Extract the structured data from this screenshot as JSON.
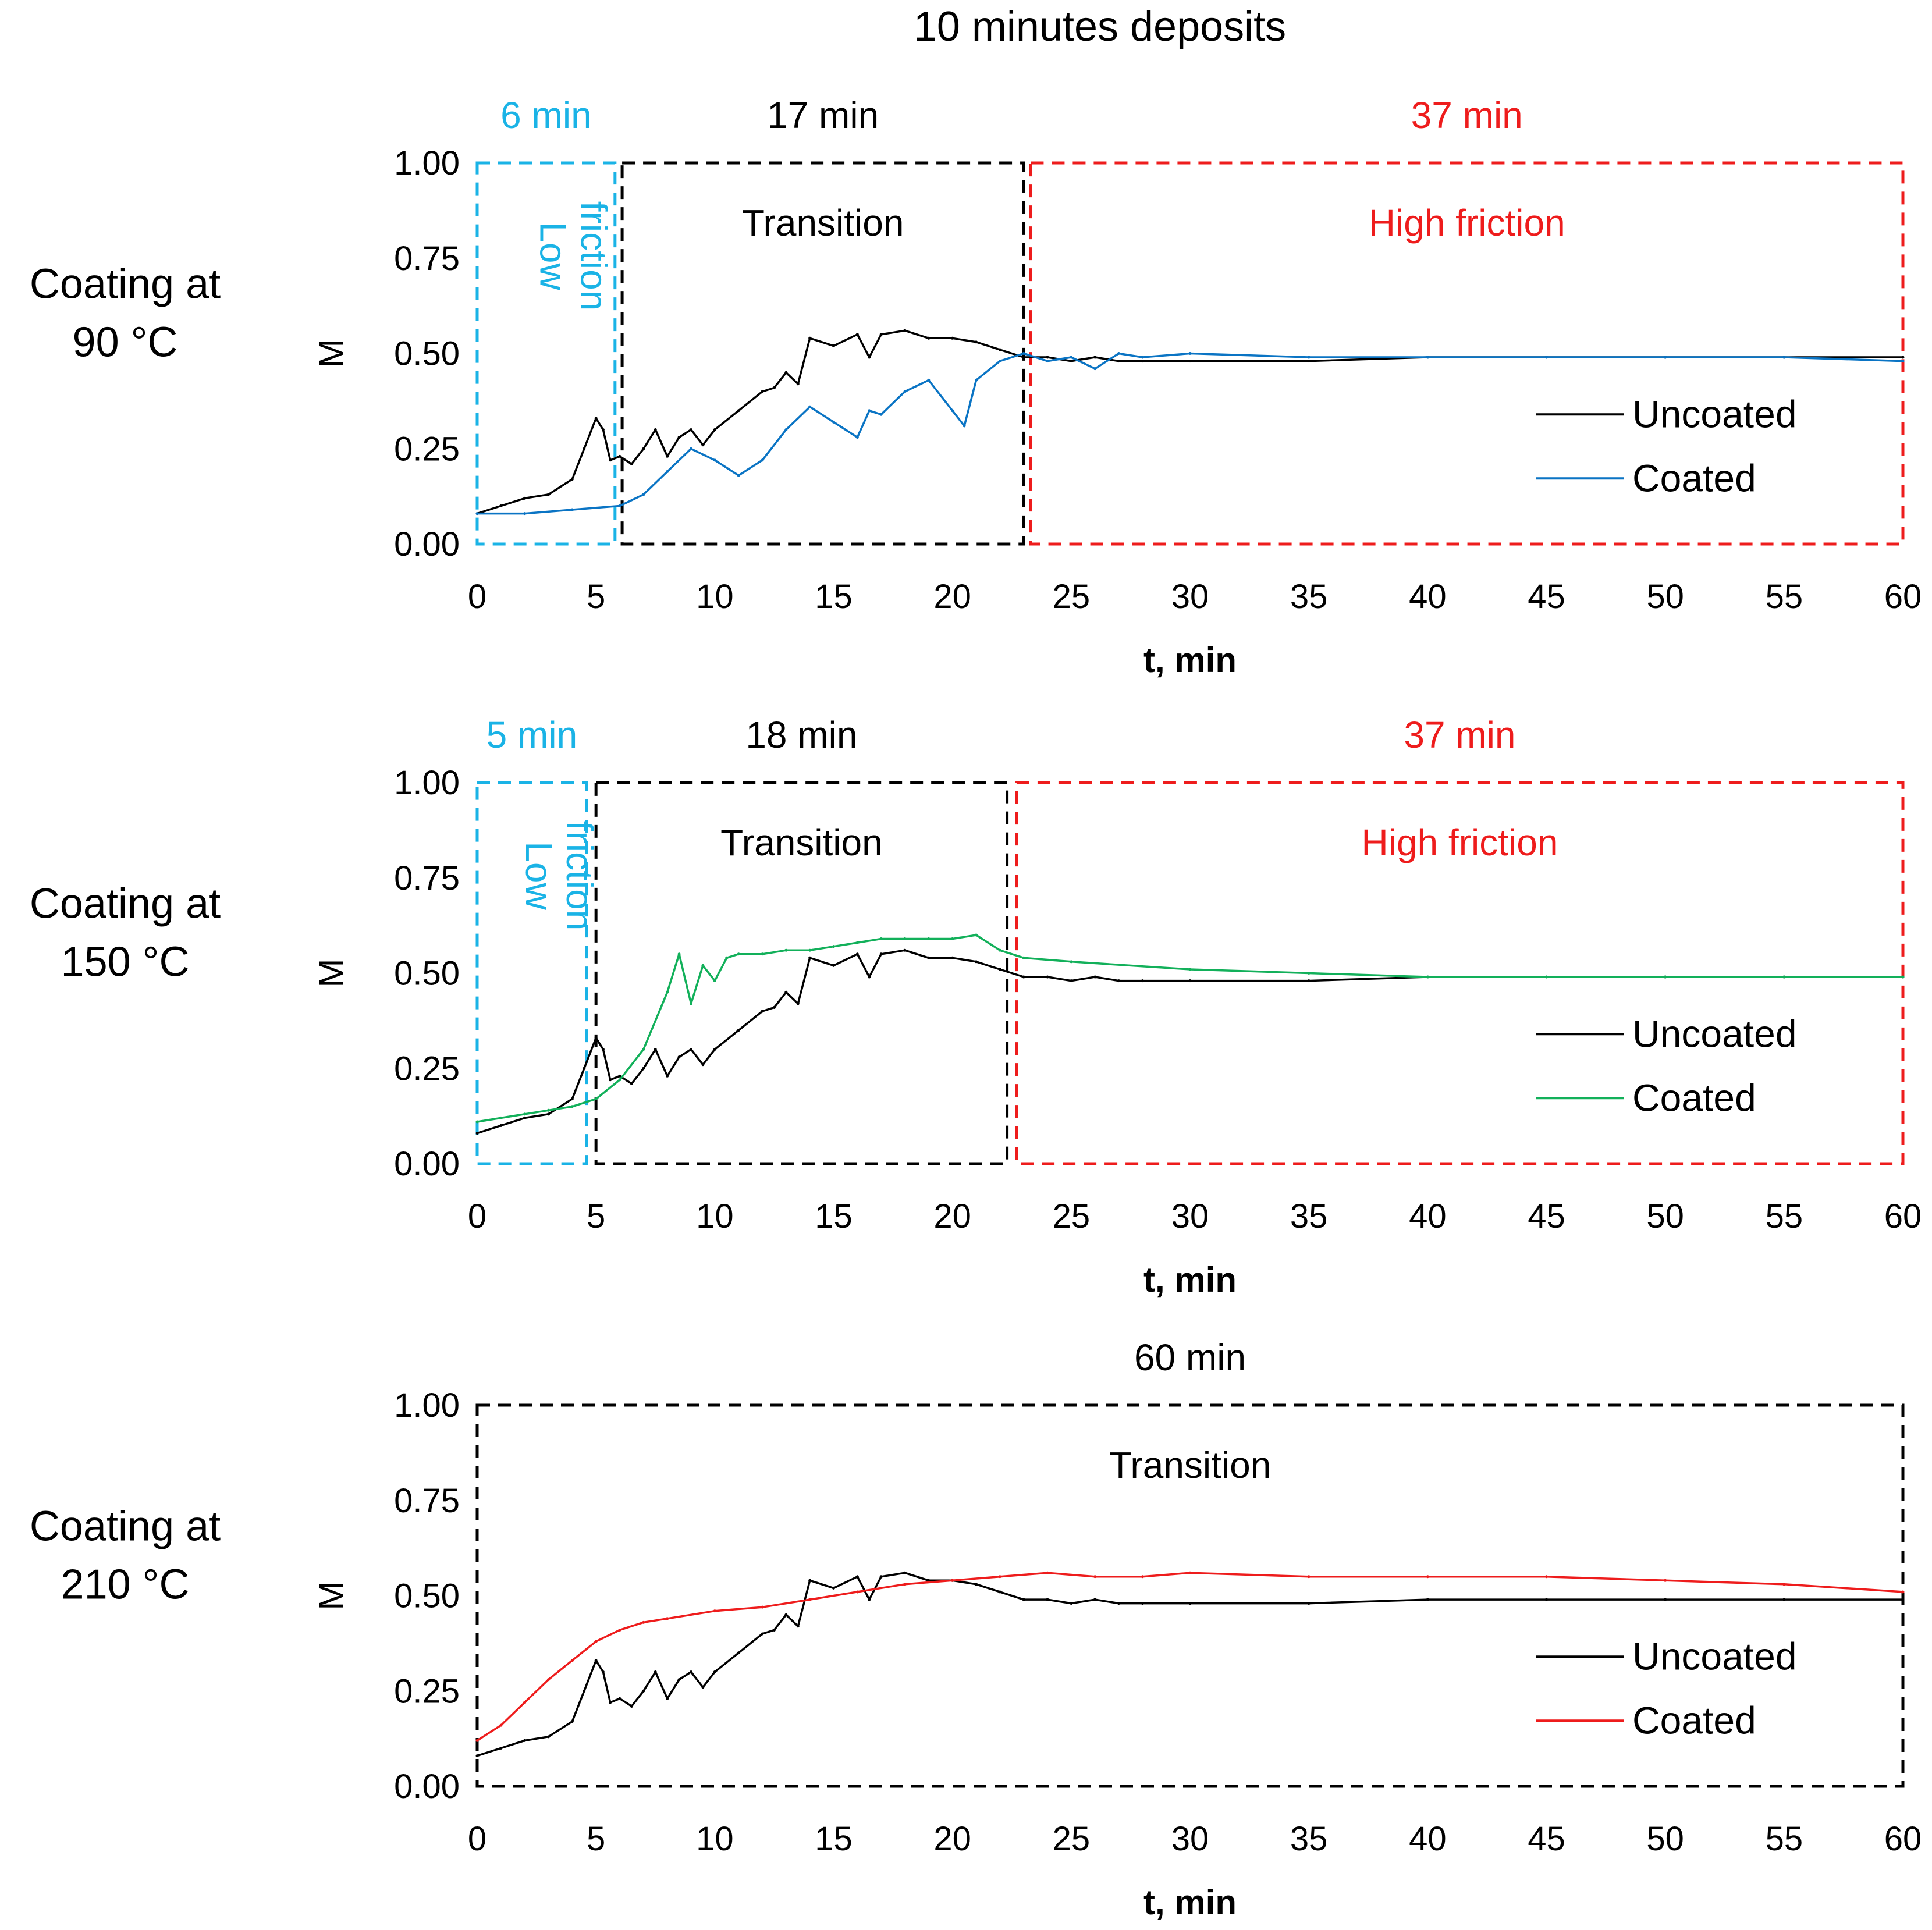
{
  "figure": {
    "title": "10 minutes deposits",
    "xlabel": "t, min",
    "ylabel": "M",
    "x_ticks": [
      "0",
      "5",
      "10",
      "15",
      "20",
      "25",
      "30",
      "35",
      "40",
      "45",
      "50",
      "55",
      "60"
    ],
    "y_ticks": [
      "0.00",
      "0.25",
      "0.50",
      "0.75",
      "1.00"
    ],
    "legend_uncoated": "Uncoated",
    "legend_coated": "Coated"
  },
  "colors": {
    "low": "#1ab3e6",
    "transition": "#000000",
    "high": "#ee1c1c",
    "uncoated": "#000000",
    "coated_90": "#0a74c4",
    "coated_150": "#12b05a",
    "coated_210": "#ee1c1c"
  },
  "panels": [
    {
      "label_line1": "Coating at",
      "label_line2": "90 °C",
      "zones": [
        {
          "name": "Low friction",
          "duration": "6 min",
          "x0": 0,
          "x1": 5.8,
          "kind": "low",
          "label_line1": "Low",
          "label_line2": "friction"
        },
        {
          "name": "Transition",
          "duration": "17 min",
          "x0": 6.1,
          "x1": 23.0,
          "kind": "transition",
          "label_line1": "Transition"
        },
        {
          "name": "High friction",
          "duration": "37 min",
          "x0": 23.3,
          "x1": 60,
          "kind": "high",
          "label_line1": "High friction"
        }
      ]
    },
    {
      "label_line1": "Coating at",
      "label_line2": "150 °C",
      "zones": [
        {
          "name": "Low friction",
          "duration": "5 min",
          "x0": 0,
          "x1": 4.6,
          "kind": "low",
          "label_line1": "Low",
          "label_line2": "friction"
        },
        {
          "name": "Transition",
          "duration": "18 min",
          "x0": 5.0,
          "x1": 22.3,
          "kind": "transition",
          "label_line1": "Transition"
        },
        {
          "name": "High friction",
          "duration": "37 min",
          "x0": 22.7,
          "x1": 60,
          "kind": "high",
          "label_line1": "High friction"
        }
      ]
    },
    {
      "label_line1": "Coating at",
      "label_line2": "210 °C",
      "zones": [
        {
          "name": "Transition",
          "duration": "60 min",
          "x0": 0,
          "x1": 60,
          "kind": "transition",
          "label_line1": "Transition"
        }
      ]
    }
  ],
  "chart_data": [
    {
      "type": "line",
      "title": "Coating at 90 °C",
      "xlabel": "t, min",
      "ylabel": "M",
      "xlim": [
        0,
        60
      ],
      "ylim": [
        0,
        1
      ],
      "legend": "right",
      "series": [
        {
          "name": "Uncoated",
          "x": [
            0,
            1,
            2,
            3,
            4,
            4.5,
            5,
            5.3,
            5.6,
            6,
            6.5,
            7,
            7.5,
            8,
            8.5,
            9,
            9.5,
            10,
            11,
            12,
            12.5,
            13,
            13.5,
            14,
            15,
            16,
            16.5,
            17,
            18,
            19,
            20,
            21,
            22,
            23,
            24,
            25,
            26,
            27,
            28,
            30,
            35,
            40,
            45,
            50,
            55,
            60
          ],
          "y": [
            0.08,
            0.1,
            0.12,
            0.13,
            0.17,
            0.25,
            0.33,
            0.3,
            0.22,
            0.23,
            0.21,
            0.25,
            0.3,
            0.23,
            0.28,
            0.3,
            0.26,
            0.3,
            0.35,
            0.4,
            0.41,
            0.45,
            0.42,
            0.54,
            0.52,
            0.55,
            0.49,
            0.55,
            0.56,
            0.54,
            0.54,
            0.53,
            0.51,
            0.49,
            0.49,
            0.48,
            0.49,
            0.48,
            0.48,
            0.48,
            0.48,
            0.49,
            0.49,
            0.49,
            0.49,
            0.49
          ]
        },
        {
          "name": "Coated",
          "x": [
            0,
            2,
            4,
            6,
            7,
            8,
            9,
            10,
            11,
            12,
            13,
            14,
            15,
            16,
            16.5,
            17,
            18,
            19,
            20,
            20.5,
            21,
            22,
            23,
            24,
            25,
            26,
            27,
            28,
            30,
            35,
            40,
            45,
            50,
            55,
            60
          ],
          "y": [
            0.08,
            0.08,
            0.09,
            0.1,
            0.13,
            0.19,
            0.25,
            0.22,
            0.18,
            0.22,
            0.3,
            0.36,
            0.32,
            0.28,
            0.35,
            0.34,
            0.4,
            0.43,
            0.35,
            0.31,
            0.43,
            0.48,
            0.5,
            0.48,
            0.49,
            0.46,
            0.5,
            0.49,
            0.5,
            0.49,
            0.49,
            0.49,
            0.49,
            0.49,
            0.48
          ]
        }
      ]
    },
    {
      "type": "line",
      "title": "Coating at 150 °C",
      "xlabel": "t, min",
      "ylabel": "M",
      "xlim": [
        0,
        60
      ],
      "ylim": [
        0,
        1
      ],
      "legend": "right",
      "series": [
        {
          "name": "Uncoated",
          "x": [
            0,
            1,
            2,
            3,
            4,
            4.5,
            5,
            5.3,
            5.6,
            6,
            6.5,
            7,
            7.5,
            8,
            8.5,
            9,
            9.5,
            10,
            11,
            12,
            12.5,
            13,
            13.5,
            14,
            15,
            16,
            16.5,
            17,
            18,
            19,
            20,
            21,
            22,
            23,
            24,
            25,
            26,
            27,
            28,
            30,
            35,
            40,
            45,
            50,
            55,
            60
          ],
          "y": [
            0.08,
            0.1,
            0.12,
            0.13,
            0.17,
            0.25,
            0.33,
            0.3,
            0.22,
            0.23,
            0.21,
            0.25,
            0.3,
            0.23,
            0.28,
            0.3,
            0.26,
            0.3,
            0.35,
            0.4,
            0.41,
            0.45,
            0.42,
            0.54,
            0.52,
            0.55,
            0.49,
            0.55,
            0.56,
            0.54,
            0.54,
            0.53,
            0.51,
            0.49,
            0.49,
            0.48,
            0.49,
            0.48,
            0.48,
            0.48,
            0.48,
            0.49,
            0.49,
            0.49,
            0.49,
            0.49
          ]
        },
        {
          "name": "Coated",
          "x": [
            0,
            1,
            2,
            3,
            4,
            5,
            6,
            7,
            8,
            8.5,
            9,
            9.5,
            10,
            10.5,
            11,
            12,
            13,
            14,
            15,
            16,
            17,
            18,
            19,
            20,
            21,
            22,
            23,
            25,
            30,
            35,
            40,
            45,
            50,
            55,
            60
          ],
          "y": [
            0.11,
            0.12,
            0.13,
            0.14,
            0.15,
            0.17,
            0.22,
            0.3,
            0.45,
            0.55,
            0.42,
            0.52,
            0.48,
            0.54,
            0.55,
            0.55,
            0.56,
            0.56,
            0.57,
            0.58,
            0.59,
            0.59,
            0.59,
            0.59,
            0.6,
            0.56,
            0.54,
            0.53,
            0.51,
            0.5,
            0.49,
            0.49,
            0.49,
            0.49,
            0.49
          ]
        }
      ]
    },
    {
      "type": "line",
      "title": "Coating at 210 °C",
      "xlabel": "t, min",
      "ylabel": "M",
      "xlim": [
        0,
        60
      ],
      "ylim": [
        0,
        1
      ],
      "legend": "right",
      "series": [
        {
          "name": "Uncoated",
          "x": [
            0,
            1,
            2,
            3,
            4,
            4.5,
            5,
            5.3,
            5.6,
            6,
            6.5,
            7,
            7.5,
            8,
            8.5,
            9,
            9.5,
            10,
            11,
            12,
            12.5,
            13,
            13.5,
            14,
            15,
            16,
            16.5,
            17,
            18,
            19,
            20,
            21,
            22,
            23,
            24,
            25,
            26,
            27,
            28,
            30,
            35,
            40,
            45,
            50,
            55,
            60
          ],
          "y": [
            0.08,
            0.1,
            0.12,
            0.13,
            0.17,
            0.25,
            0.33,
            0.3,
            0.22,
            0.23,
            0.21,
            0.25,
            0.3,
            0.23,
            0.28,
            0.3,
            0.26,
            0.3,
            0.35,
            0.4,
            0.41,
            0.45,
            0.42,
            0.54,
            0.52,
            0.55,
            0.49,
            0.55,
            0.56,
            0.54,
            0.54,
            0.53,
            0.51,
            0.49,
            0.49,
            0.48,
            0.49,
            0.48,
            0.48,
            0.48,
            0.48,
            0.49,
            0.49,
            0.49,
            0.49,
            0.49
          ]
        },
        {
          "name": "Coated",
          "x": [
            0,
            1,
            2,
            3,
            4,
            5,
            6,
            7,
            8,
            10,
            12,
            14,
            16,
            18,
            20,
            22,
            24,
            26,
            28,
            30,
            35,
            40,
            45,
            50,
            55,
            60
          ],
          "y": [
            0.12,
            0.16,
            0.22,
            0.28,
            0.33,
            0.38,
            0.41,
            0.43,
            0.44,
            0.46,
            0.47,
            0.49,
            0.51,
            0.53,
            0.54,
            0.55,
            0.56,
            0.55,
            0.55,
            0.56,
            0.55,
            0.55,
            0.55,
            0.54,
            0.53,
            0.51
          ]
        }
      ]
    }
  ]
}
